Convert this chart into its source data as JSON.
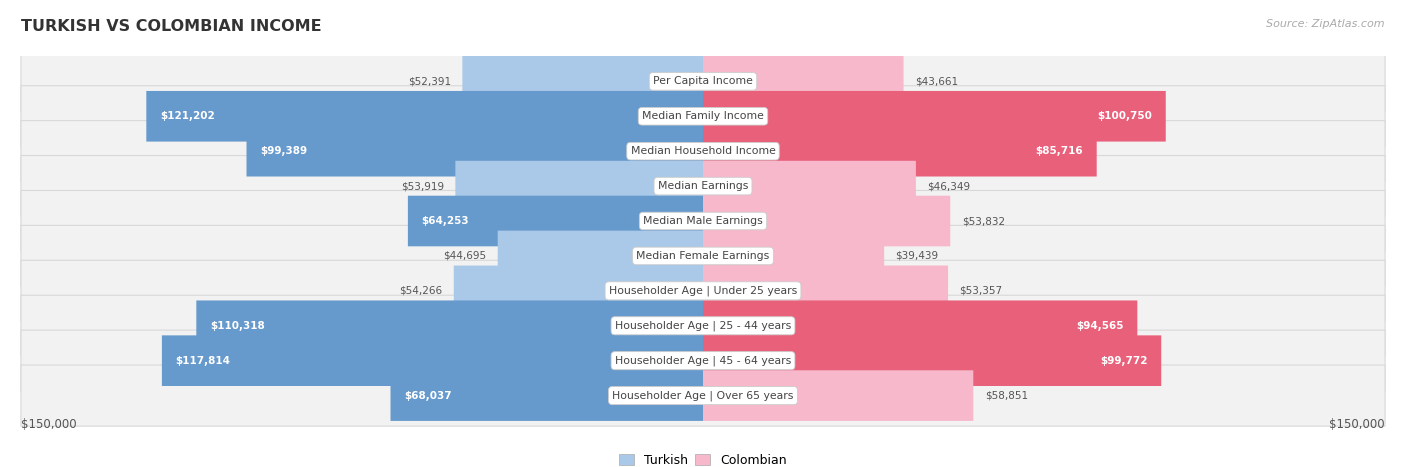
{
  "title": "TURKISH VS COLOMBIAN INCOME",
  "source": "Source: ZipAtlas.com",
  "x_max": 150000,
  "categories": [
    "Per Capita Income",
    "Median Family Income",
    "Median Household Income",
    "Median Earnings",
    "Median Male Earnings",
    "Median Female Earnings",
    "Householder Age | Under 25 years",
    "Householder Age | 25 - 44 years",
    "Householder Age | 45 - 64 years",
    "Householder Age | Over 65 years"
  ],
  "turkish_values": [
    52391,
    121202,
    99389,
    53919,
    64253,
    44695,
    54266,
    110318,
    117814,
    68037
  ],
  "colombian_values": [
    43661,
    100750,
    85716,
    46349,
    53832,
    39439,
    53357,
    94565,
    99772,
    58851
  ],
  "turkish_color_light": "#aac8e8",
  "turkish_color_dark": "#6699cc",
  "colombian_color_light": "#f7b8cb",
  "colombian_color_dark": "#e8607a",
  "row_bg": "#f2f2f2",
  "row_border": "#d8d8d8",
  "title_color": "#333333",
  "source_color": "#aaaaaa",
  "label_text_color": "#444444",
  "value_inside_color": "#ffffff",
  "value_outside_color": "#555555",
  "inside_threshold": 60000,
  "legend_turkish": "Turkish",
  "legend_colombian": "Colombian",
  "xlabel_left": "$150,000",
  "xlabel_right": "$150,000"
}
